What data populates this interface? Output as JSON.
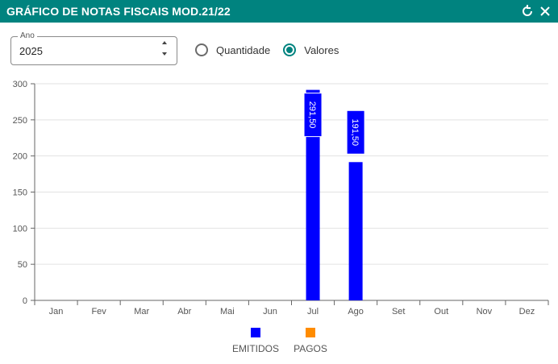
{
  "window": {
    "title": "GRÁFICO DE NOTAS FISCAIS MOD.21/22"
  },
  "filters": {
    "year_label": "Ano",
    "year_value": "2025",
    "mode_options": [
      {
        "label": "Quantidade",
        "checked": false
      },
      {
        "label": "Valores",
        "checked": true
      }
    ]
  },
  "colors": {
    "header": "#00837f",
    "emitidos": "#0000ff",
    "pagos": "#ff8c00"
  },
  "icons": {
    "refresh": "refresh-icon",
    "close": "close-icon"
  },
  "chart_data": {
    "type": "bar",
    "categories": [
      "Jan",
      "Fev",
      "Mar",
      "Abr",
      "Mai",
      "Jun",
      "Jul",
      "Ago",
      "Set",
      "Out",
      "Nov",
      "Dez"
    ],
    "series": [
      {
        "name": "EMITIDOS",
        "values": [
          0,
          0,
          0,
          0,
          0,
          0,
          291.5,
          191.5,
          0,
          0,
          0,
          0
        ]
      },
      {
        "name": "PAGOS",
        "values": [
          0,
          0,
          0,
          0,
          0,
          0,
          0,
          0,
          0,
          0,
          0,
          0
        ]
      }
    ],
    "data_labels": [
      "",
      "",
      "",
      "",
      "",
      "",
      "291,50",
      "191,50",
      "",
      "",
      "",
      ""
    ],
    "yticks": [
      "0",
      "50",
      "100",
      "150",
      "200",
      "250",
      "300"
    ],
    "ylim": [
      0,
      300
    ],
    "grid": true,
    "legend_position": "bottom"
  }
}
